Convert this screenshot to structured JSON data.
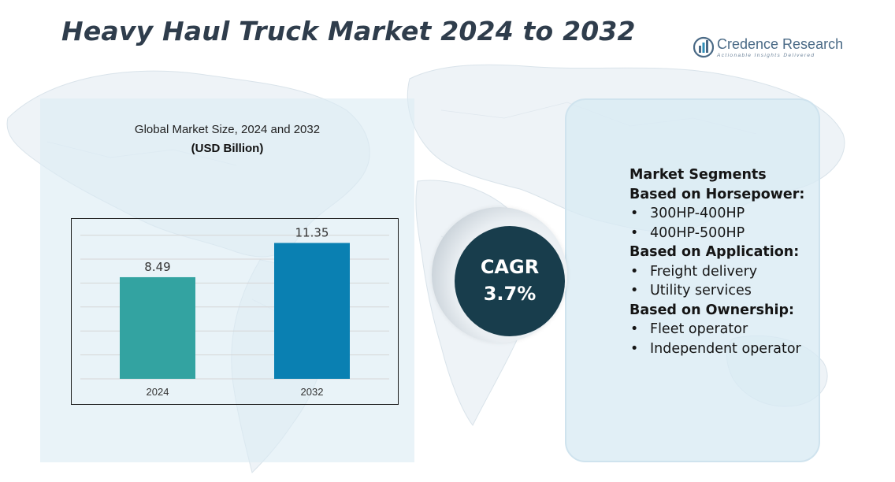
{
  "title": "Heavy Haul Truck Market 2024 to 2032",
  "logo": {
    "name": "Credence Research",
    "tagline": "Actionable Insights Delivered"
  },
  "chart": {
    "heading": "Global Market Size, 2024 and 2032",
    "unit": "(USD Billion)"
  },
  "chart_data": {
    "type": "bar",
    "categories": [
      "2024",
      "2032"
    ],
    "values": [
      8.49,
      11.35
    ],
    "value_labels": [
      "8.49",
      "11.35"
    ],
    "title": "Global Market Size, 2024 and 2032",
    "subtitle": "(USD Billion)",
    "xlabel": "",
    "ylabel": "",
    "ylim": [
      0,
      12.5
    ],
    "grid": true,
    "legend": "none",
    "colors": [
      "#33a3a1",
      "#0a80b2"
    ]
  },
  "cagr": {
    "label": "CAGR",
    "value": "3.7%"
  },
  "segments": {
    "heading": "Market Segments",
    "groups": [
      {
        "title": "Based on Horsepower:",
        "items": [
          "300HP-400HP",
          "400HP-500HP"
        ]
      },
      {
        "title": "Based on Application:",
        "items": [
          "Freight delivery",
          "Utility services"
        ]
      },
      {
        "title": "Based on Ownership:",
        "items": [
          "Fleet operator",
          "Independent operator"
        ]
      }
    ]
  },
  "colors": {
    "title_text": "#2f3d4c",
    "cagr_circle": "#183d4c",
    "left_panel": "#dcecf4",
    "right_panel": "#d8eaf3"
  }
}
